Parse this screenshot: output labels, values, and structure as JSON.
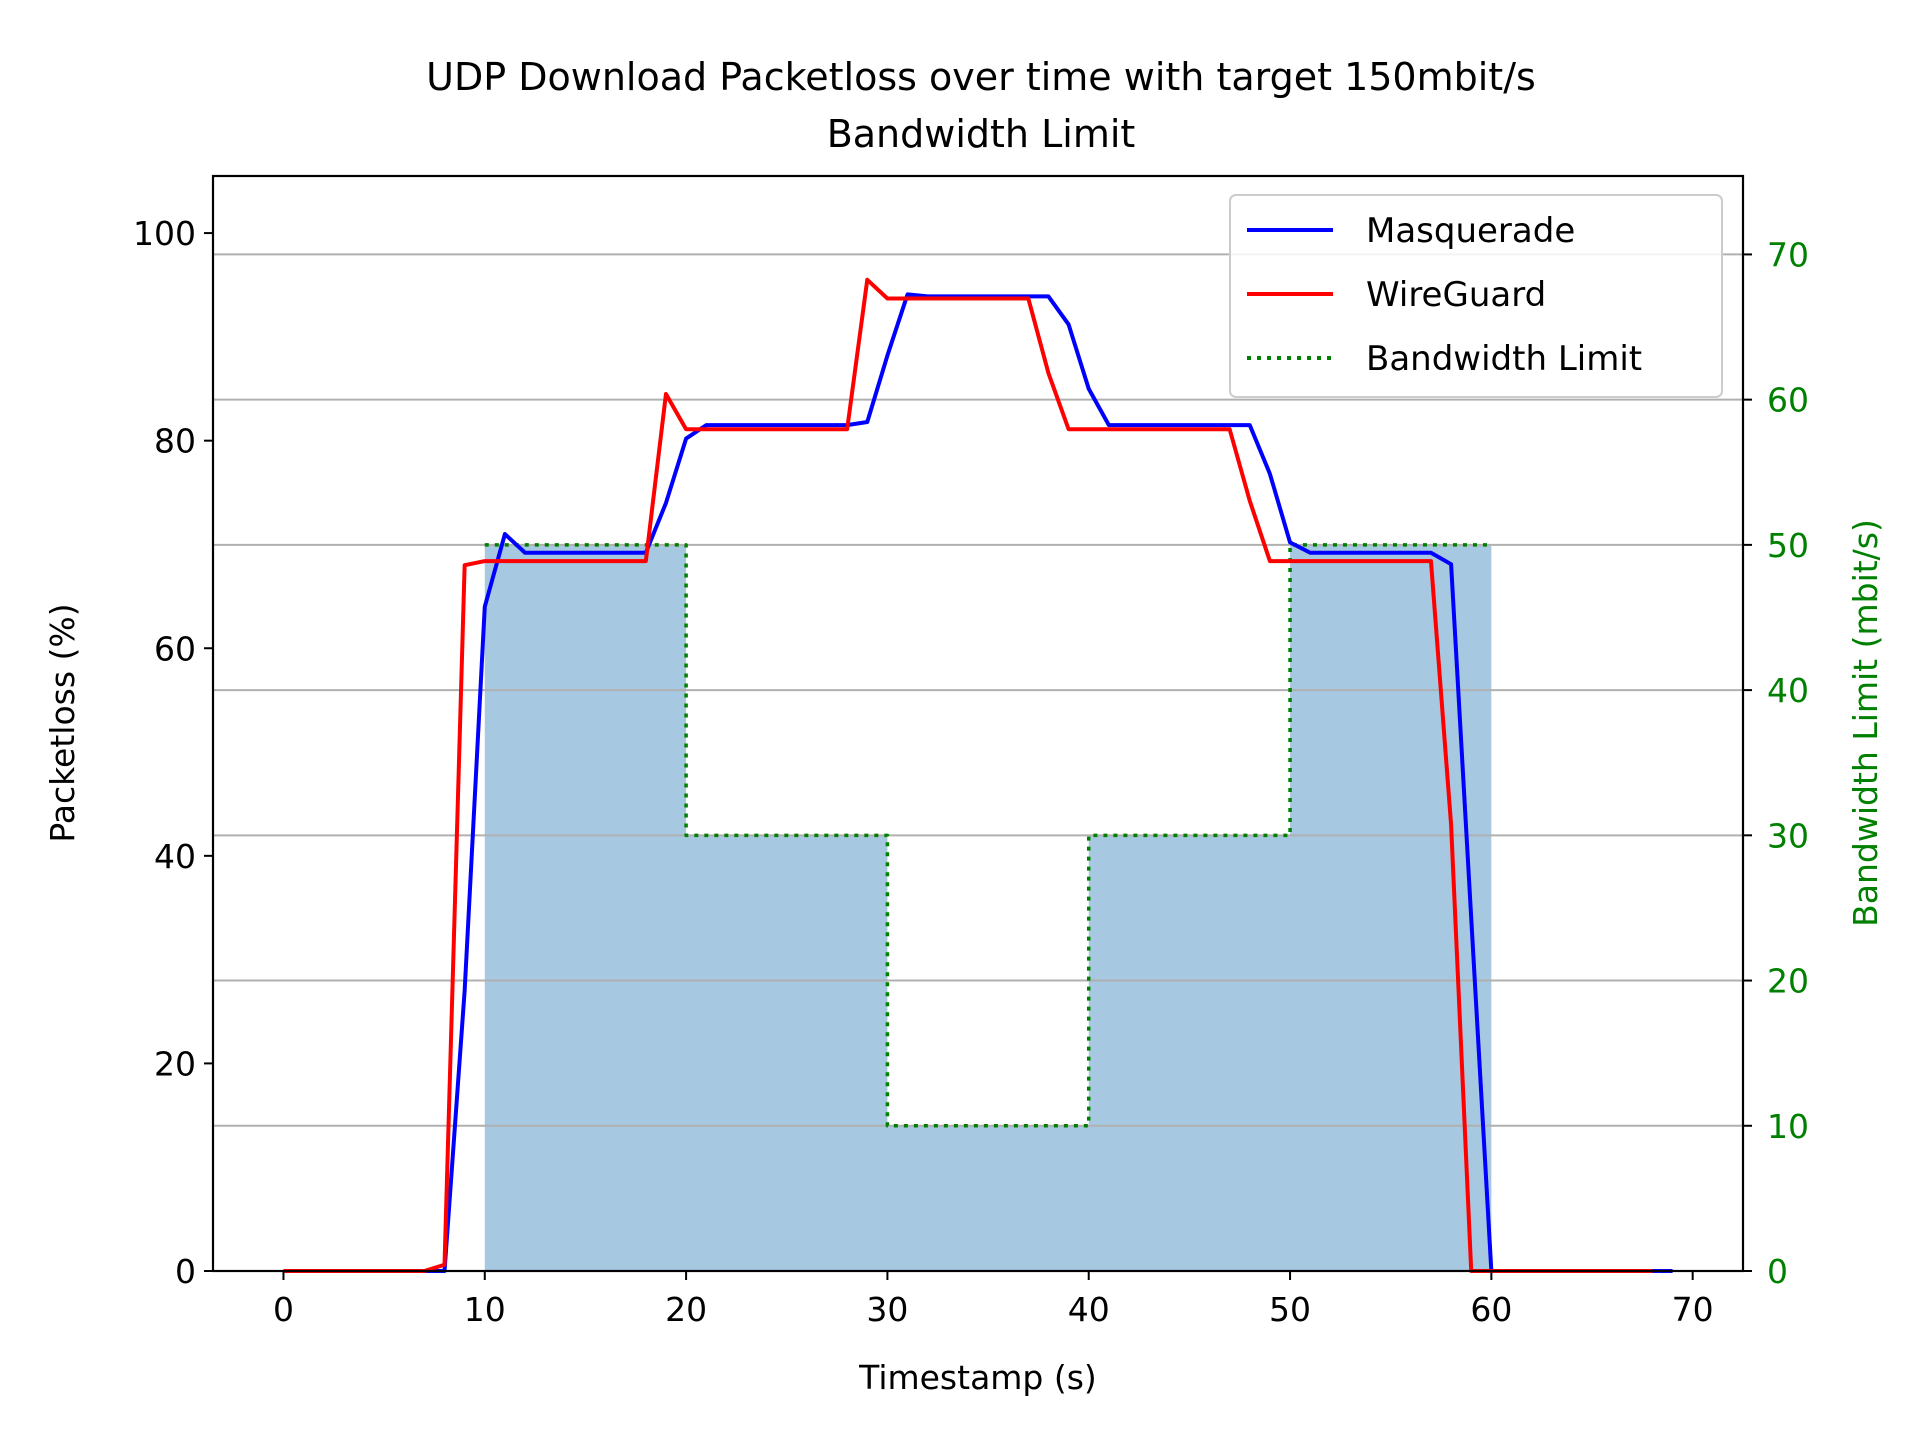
{
  "chart_data": {
    "type": "line",
    "title": "UDP Download Packetloss over time with target 150mbit/s\nBandwidth Limit",
    "xlabel": "Timestamp (s)",
    "ylabel": "Packetloss (%)",
    "y2label": "Bandwidth Limit (mbit/s)",
    "xlim": [
      -3.5,
      72.5
    ],
    "ylim": [
      0,
      105.5
    ],
    "y2lim": [
      0,
      75.4
    ],
    "xticks": [
      0,
      10,
      20,
      30,
      40,
      50,
      60,
      70
    ],
    "yticks": [
      0,
      20,
      40,
      60,
      80,
      100
    ],
    "y2ticks": [
      0,
      10,
      20,
      30,
      40,
      50,
      60,
      70
    ],
    "grid": "horizontal lines at secondary axis ticks",
    "legend_position": "top-right",
    "colors": {
      "masquerade": "#0000ff",
      "wireguard": "#ff0000",
      "bandwidth_limit": "#008000",
      "fill": "#a6c8e0",
      "grid": "#b0b0b0",
      "secondary_axis": "#008000"
    },
    "series": [
      {
        "name": "Masquerade",
        "axis": "left",
        "style": "solid",
        "x": [
          0,
          1,
          2,
          3,
          4,
          5,
          6,
          7,
          8,
          9,
          10,
          11,
          12,
          13,
          14,
          15,
          16,
          17,
          18,
          19,
          20,
          21,
          22,
          23,
          24,
          25,
          26,
          27,
          28,
          29,
          30,
          31,
          32,
          33,
          34,
          35,
          36,
          37,
          38,
          39,
          40,
          41,
          42,
          43,
          44,
          45,
          46,
          47,
          48,
          49,
          50,
          51,
          52,
          53,
          54,
          55,
          56,
          57,
          58,
          59,
          60,
          61,
          62,
          63,
          64,
          65,
          66,
          67,
          68,
          69
        ],
        "y": [
          0,
          0,
          0,
          0,
          0,
          0,
          0,
          0,
          0,
          27,
          64,
          71,
          69.2,
          69.2,
          69.2,
          69.2,
          69.2,
          69.2,
          69.2,
          74,
          80.2,
          81.5,
          81.5,
          81.5,
          81.5,
          81.5,
          81.5,
          81.5,
          81.5,
          81.8,
          88.2,
          94.1,
          93.9,
          93.9,
          93.9,
          93.9,
          93.9,
          93.9,
          93.9,
          91.2,
          85,
          81.5,
          81.5,
          81.5,
          81.5,
          81.5,
          81.5,
          81.5,
          81.5,
          76.8,
          70.2,
          69.2,
          69.2,
          69.2,
          69.2,
          69.2,
          69.2,
          69.2,
          68.1,
          34,
          0,
          0,
          0,
          0,
          0,
          0,
          0,
          0,
          0,
          0
        ]
      },
      {
        "name": "WireGuard",
        "axis": "left",
        "style": "solid",
        "x": [
          0,
          1,
          2,
          3,
          4,
          5,
          6,
          7,
          8,
          9,
          10,
          11,
          12,
          13,
          14,
          15,
          16,
          17,
          18,
          19,
          20,
          21,
          22,
          23,
          24,
          25,
          26,
          27,
          28,
          29,
          30,
          31,
          32,
          33,
          34,
          35,
          36,
          37,
          38,
          39,
          40,
          41,
          42,
          43,
          44,
          45,
          46,
          47,
          48,
          49,
          50,
          51,
          52,
          53,
          54,
          55,
          56,
          57,
          58,
          59,
          60,
          61,
          62,
          63,
          64,
          65,
          66,
          67,
          68
        ],
        "y": [
          0,
          0,
          0,
          0,
          0,
          0,
          0,
          0,
          0.6,
          68,
          68.4,
          68.4,
          68.4,
          68.4,
          68.4,
          68.4,
          68.4,
          68.4,
          68.4,
          84.5,
          81.1,
          81.1,
          81.1,
          81.1,
          81.1,
          81.1,
          81.1,
          81.1,
          81.1,
          95.5,
          93.7,
          93.7,
          93.7,
          93.7,
          93.7,
          93.7,
          93.7,
          93.7,
          86.5,
          81.1,
          81.1,
          81.1,
          81.1,
          81.1,
          81.1,
          81.1,
          81.1,
          81.1,
          74.2,
          68.4,
          68.4,
          68.4,
          68.4,
          68.4,
          68.4,
          68.4,
          68.4,
          68.4,
          43,
          0,
          0,
          0,
          0,
          0,
          0,
          0,
          0,
          0,
          0
        ]
      },
      {
        "name": "Bandwidth Limit",
        "axis": "right",
        "style": "dotted-step",
        "x": [
          10,
          20,
          20,
          30,
          30,
          40,
          40,
          50,
          50,
          60
        ],
        "y": [
          50,
          50,
          30,
          30,
          10,
          10,
          30,
          30,
          50,
          50
        ]
      }
    ]
  }
}
